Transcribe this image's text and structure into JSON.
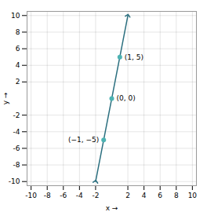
{
  "chart_data": {
    "type": "scatter",
    "xlabel": "x",
    "ylabel": "y",
    "xlim": [
      -10.5,
      10.5
    ],
    "ylim": [
      -10.5,
      10.5
    ],
    "xticks": [
      -10,
      -8,
      -6,
      -4,
      -2,
      2,
      4,
      6,
      8,
      10
    ],
    "yticks": [
      -10,
      -8,
      -6,
      -4,
      -2,
      2,
      4,
      6,
      8,
      10
    ],
    "grid": true,
    "series": [
      {
        "type": "line",
        "color": "#2b6f7f",
        "x": [
          -2,
          2
        ],
        "values": [
          -10,
          10
        ]
      },
      {
        "type": "scatter",
        "color": "#4db3b3",
        "x": [
          1,
          0,
          -1
        ],
        "values": [
          5,
          0,
          -5
        ],
        "value_labels": [
          "(1, 5)",
          "(0, 0)",
          "(−1, −5)"
        ],
        "data_labels": true
      }
    ]
  }
}
